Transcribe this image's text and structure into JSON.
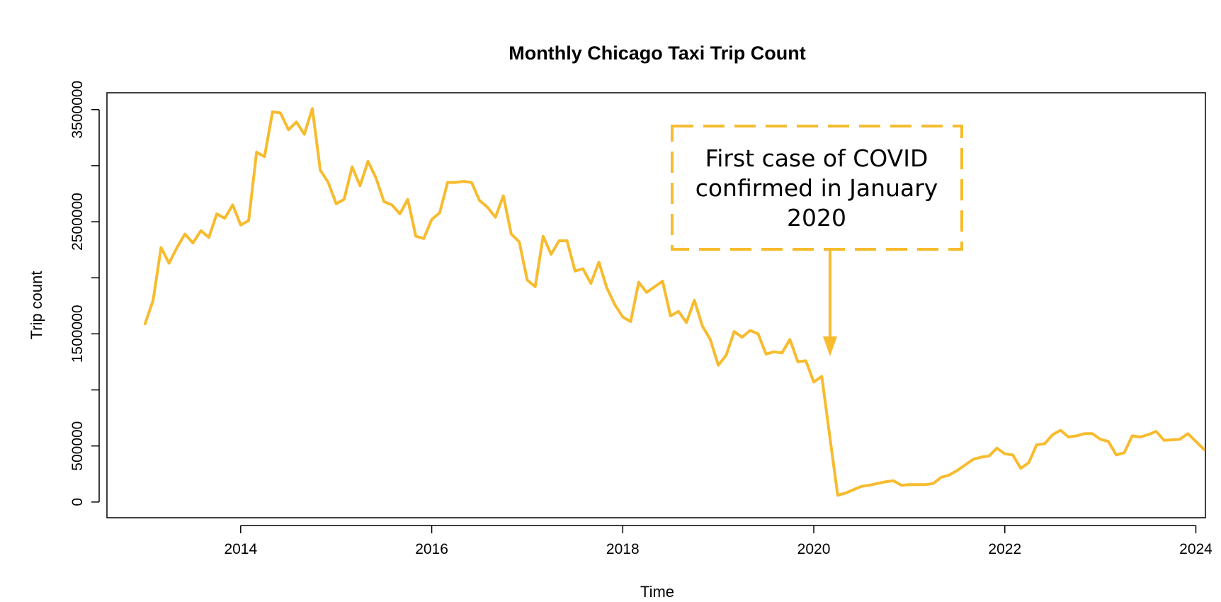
{
  "chart_data": {
    "type": "line",
    "title": "Monthly Chicago Taxi Trip Count",
    "xlabel": "Time",
    "ylabel": "Trip count",
    "xlim": [
      2012.6,
      2024.1
    ],
    "ylim": [
      -140000,
      3650000
    ],
    "x_ticks": [
      2014,
      2016,
      2018,
      2020,
      2022,
      2024
    ],
    "y_ticks": [
      0,
      500000,
      1000000,
      1500000,
      2000000,
      2500000,
      3000000,
      3500000
    ],
    "y_tick_labels_shown": [
      "0",
      "500000",
      "",
      "1500000",
      "",
      "2500000",
      "",
      "3500000"
    ],
    "grid": false,
    "line_color": "#F7BB2E",
    "series": [
      {
        "x_start": 2013.0,
        "x_step_months": 1,
        "values": [
          1590000,
          1800000,
          2270000,
          2130000,
          2270000,
          2390000,
          2310000,
          2420000,
          2360000,
          2570000,
          2530000,
          2650000,
          2470000,
          2510000,
          3120000,
          3080000,
          3480000,
          3470000,
          3320000,
          3390000,
          3280000,
          3510000,
          2960000,
          2850000,
          2660000,
          2700000,
          2990000,
          2820000,
          3040000,
          2890000,
          2680000,
          2650000,
          2570000,
          2700000,
          2370000,
          2350000,
          2520000,
          2580000,
          2850000,
          2850000,
          2860000,
          2850000,
          2690000,
          2630000,
          2540000,
          2730000,
          2390000,
          2320000,
          1980000,
          1920000,
          2370000,
          2210000,
          2330000,
          2330000,
          2060000,
          2080000,
          1950000,
          2140000,
          1910000,
          1760000,
          1650000,
          1610000,
          1960000,
          1870000,
          1920000,
          1970000,
          1660000,
          1700000,
          1600000,
          1800000,
          1570000,
          1450000,
          1220000,
          1310000,
          1520000,
          1470000,
          1530000,
          1500000,
          1320000,
          1340000,
          1330000,
          1450000,
          1250000,
          1260000,
          1070000,
          1120000,
          590000,
          60000,
          80000,
          110000,
          140000,
          150000,
          165000,
          180000,
          190000,
          150000,
          155000,
          155000,
          155000,
          165000,
          220000,
          240000,
          280000,
          330000,
          380000,
          400000,
          410000,
          480000,
          430000,
          420000,
          300000,
          350000,
          510000,
          520000,
          600000,
          640000,
          580000,
          590000,
          610000,
          610000,
          560000,
          540000,
          420000,
          440000,
          590000,
          580000,
          600000,
          630000,
          550000,
          555000,
          560000,
          610000,
          540000,
          470000
        ]
      }
    ],
    "annotation": {
      "lines": [
        "First case of COVID",
        "confirmed in January",
        "2020"
      ],
      "arrow_x": 2020.17,
      "arrow_tip_y": 1300000
    }
  }
}
